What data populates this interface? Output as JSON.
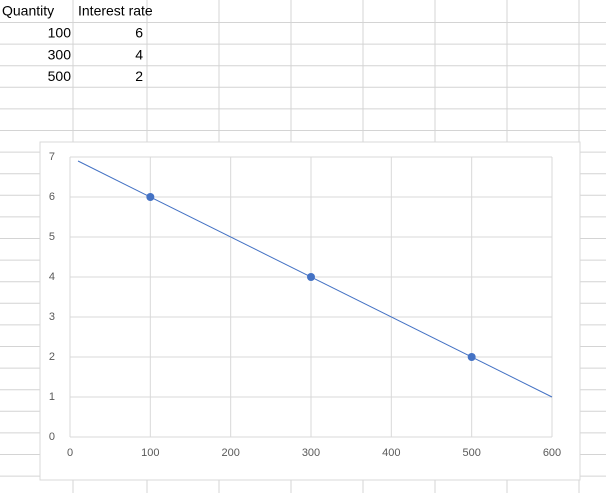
{
  "table": {
    "header": [
      "Quantity",
      "Interest rate"
    ],
    "rows": [
      [
        100,
        6
      ],
      [
        300,
        4
      ],
      [
        500,
        2
      ]
    ]
  },
  "chart_data": {
    "type": "scatter",
    "x": [
      100,
      300,
      500
    ],
    "values": [
      6,
      4,
      2
    ],
    "color": "#4472c4",
    "trendline": {
      "x": [
        10,
        600
      ],
      "values": [
        6.9,
        1
      ]
    },
    "xlim": [
      0,
      600
    ],
    "xticks": [
      0,
      100,
      200,
      300,
      400,
      500,
      600
    ],
    "ylim": [
      0,
      7
    ],
    "yticks": [
      0,
      1,
      2,
      3,
      4,
      5,
      6,
      7
    ],
    "grid": true
  }
}
